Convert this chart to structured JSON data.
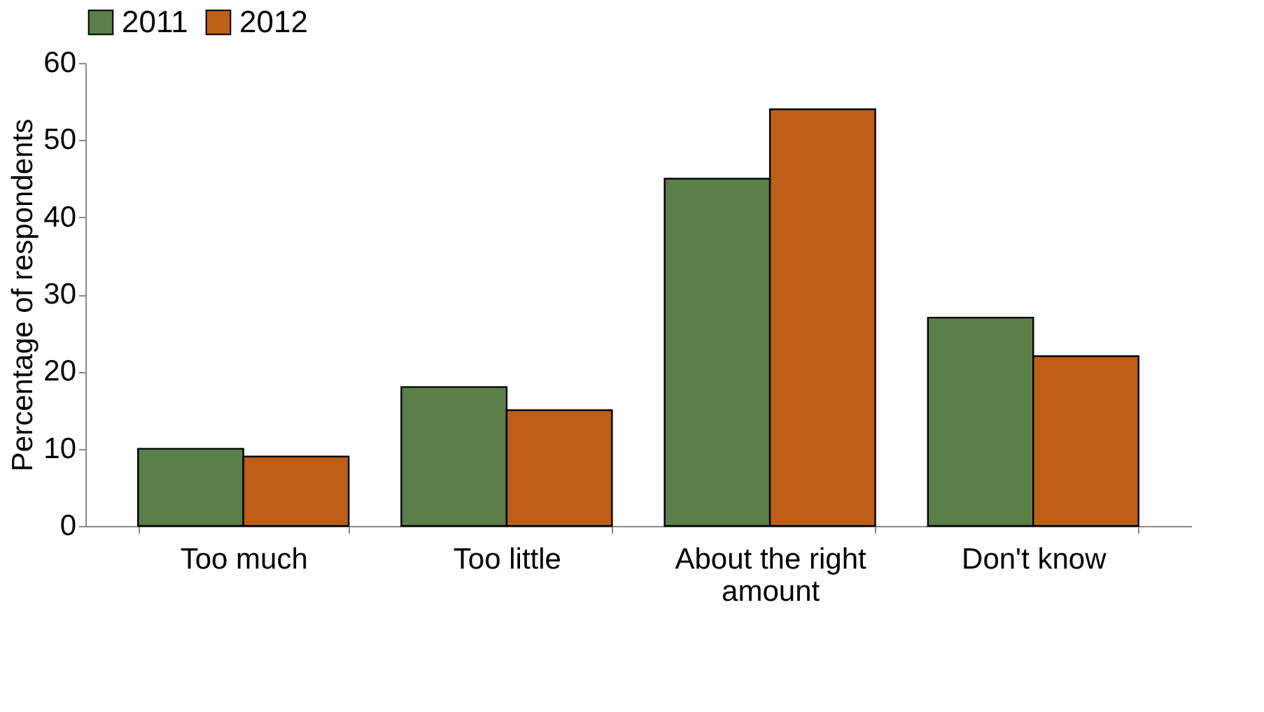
{
  "chart_data": {
    "type": "bar",
    "categories": [
      "Too much",
      "Too little",
      "About the right amount",
      "Don't know"
    ],
    "ylabel": "Percentage of respondents",
    "ylim": [
      0,
      60
    ],
    "yticks": [
      0,
      10,
      20,
      30,
      40,
      50,
      60
    ],
    "grid": false,
    "legend": "top",
    "series": [
      {
        "name": "2011",
        "color": "#5a7f48",
        "values": [
          10,
          18,
          45,
          27
        ]
      },
      {
        "name": "2012",
        "color": "#bd5f17",
        "values": [
          9,
          15,
          54,
          22
        ]
      }
    ]
  }
}
